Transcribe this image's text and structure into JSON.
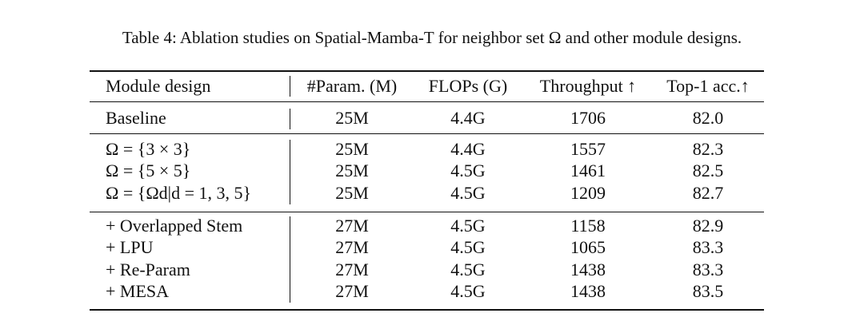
{
  "caption": "Table 4: Ablation studies on Spatial-Mamba-T for neighbor set Ω and other module designs.",
  "table": {
    "header": [
      "Module design",
      "#Param. (M)",
      "FLOPs (G)",
      "Throughput ↑",
      "Top-1 acc.↑"
    ],
    "groups": [
      [
        [
          "Baseline",
          "25M",
          "4.4G",
          "1706",
          "82.0"
        ]
      ],
      [
        [
          "Ω = {3 × 3}",
          "25M",
          "4.4G",
          "1557",
          "82.3"
        ],
        [
          "Ω = {5 × 5}",
          "25M",
          "4.5G",
          "1461",
          "82.5"
        ],
        [
          "Ω = {Ωd|d = 1, 3, 5}",
          "25M",
          "4.5G",
          "1209",
          "82.7"
        ]
      ],
      [
        [
          "+ Overlapped Stem",
          "27M",
          "4.5G",
          "1158",
          "82.9"
        ],
        [
          "+ LPU",
          "27M",
          "4.5G",
          "1065",
          "83.3"
        ],
        [
          "+ Re-Param",
          "27M",
          "4.5G",
          "1438",
          "83.3"
        ],
        [
          "+ MESA",
          "27M",
          "4.5G",
          "1438",
          "83.5"
        ]
      ]
    ]
  }
}
